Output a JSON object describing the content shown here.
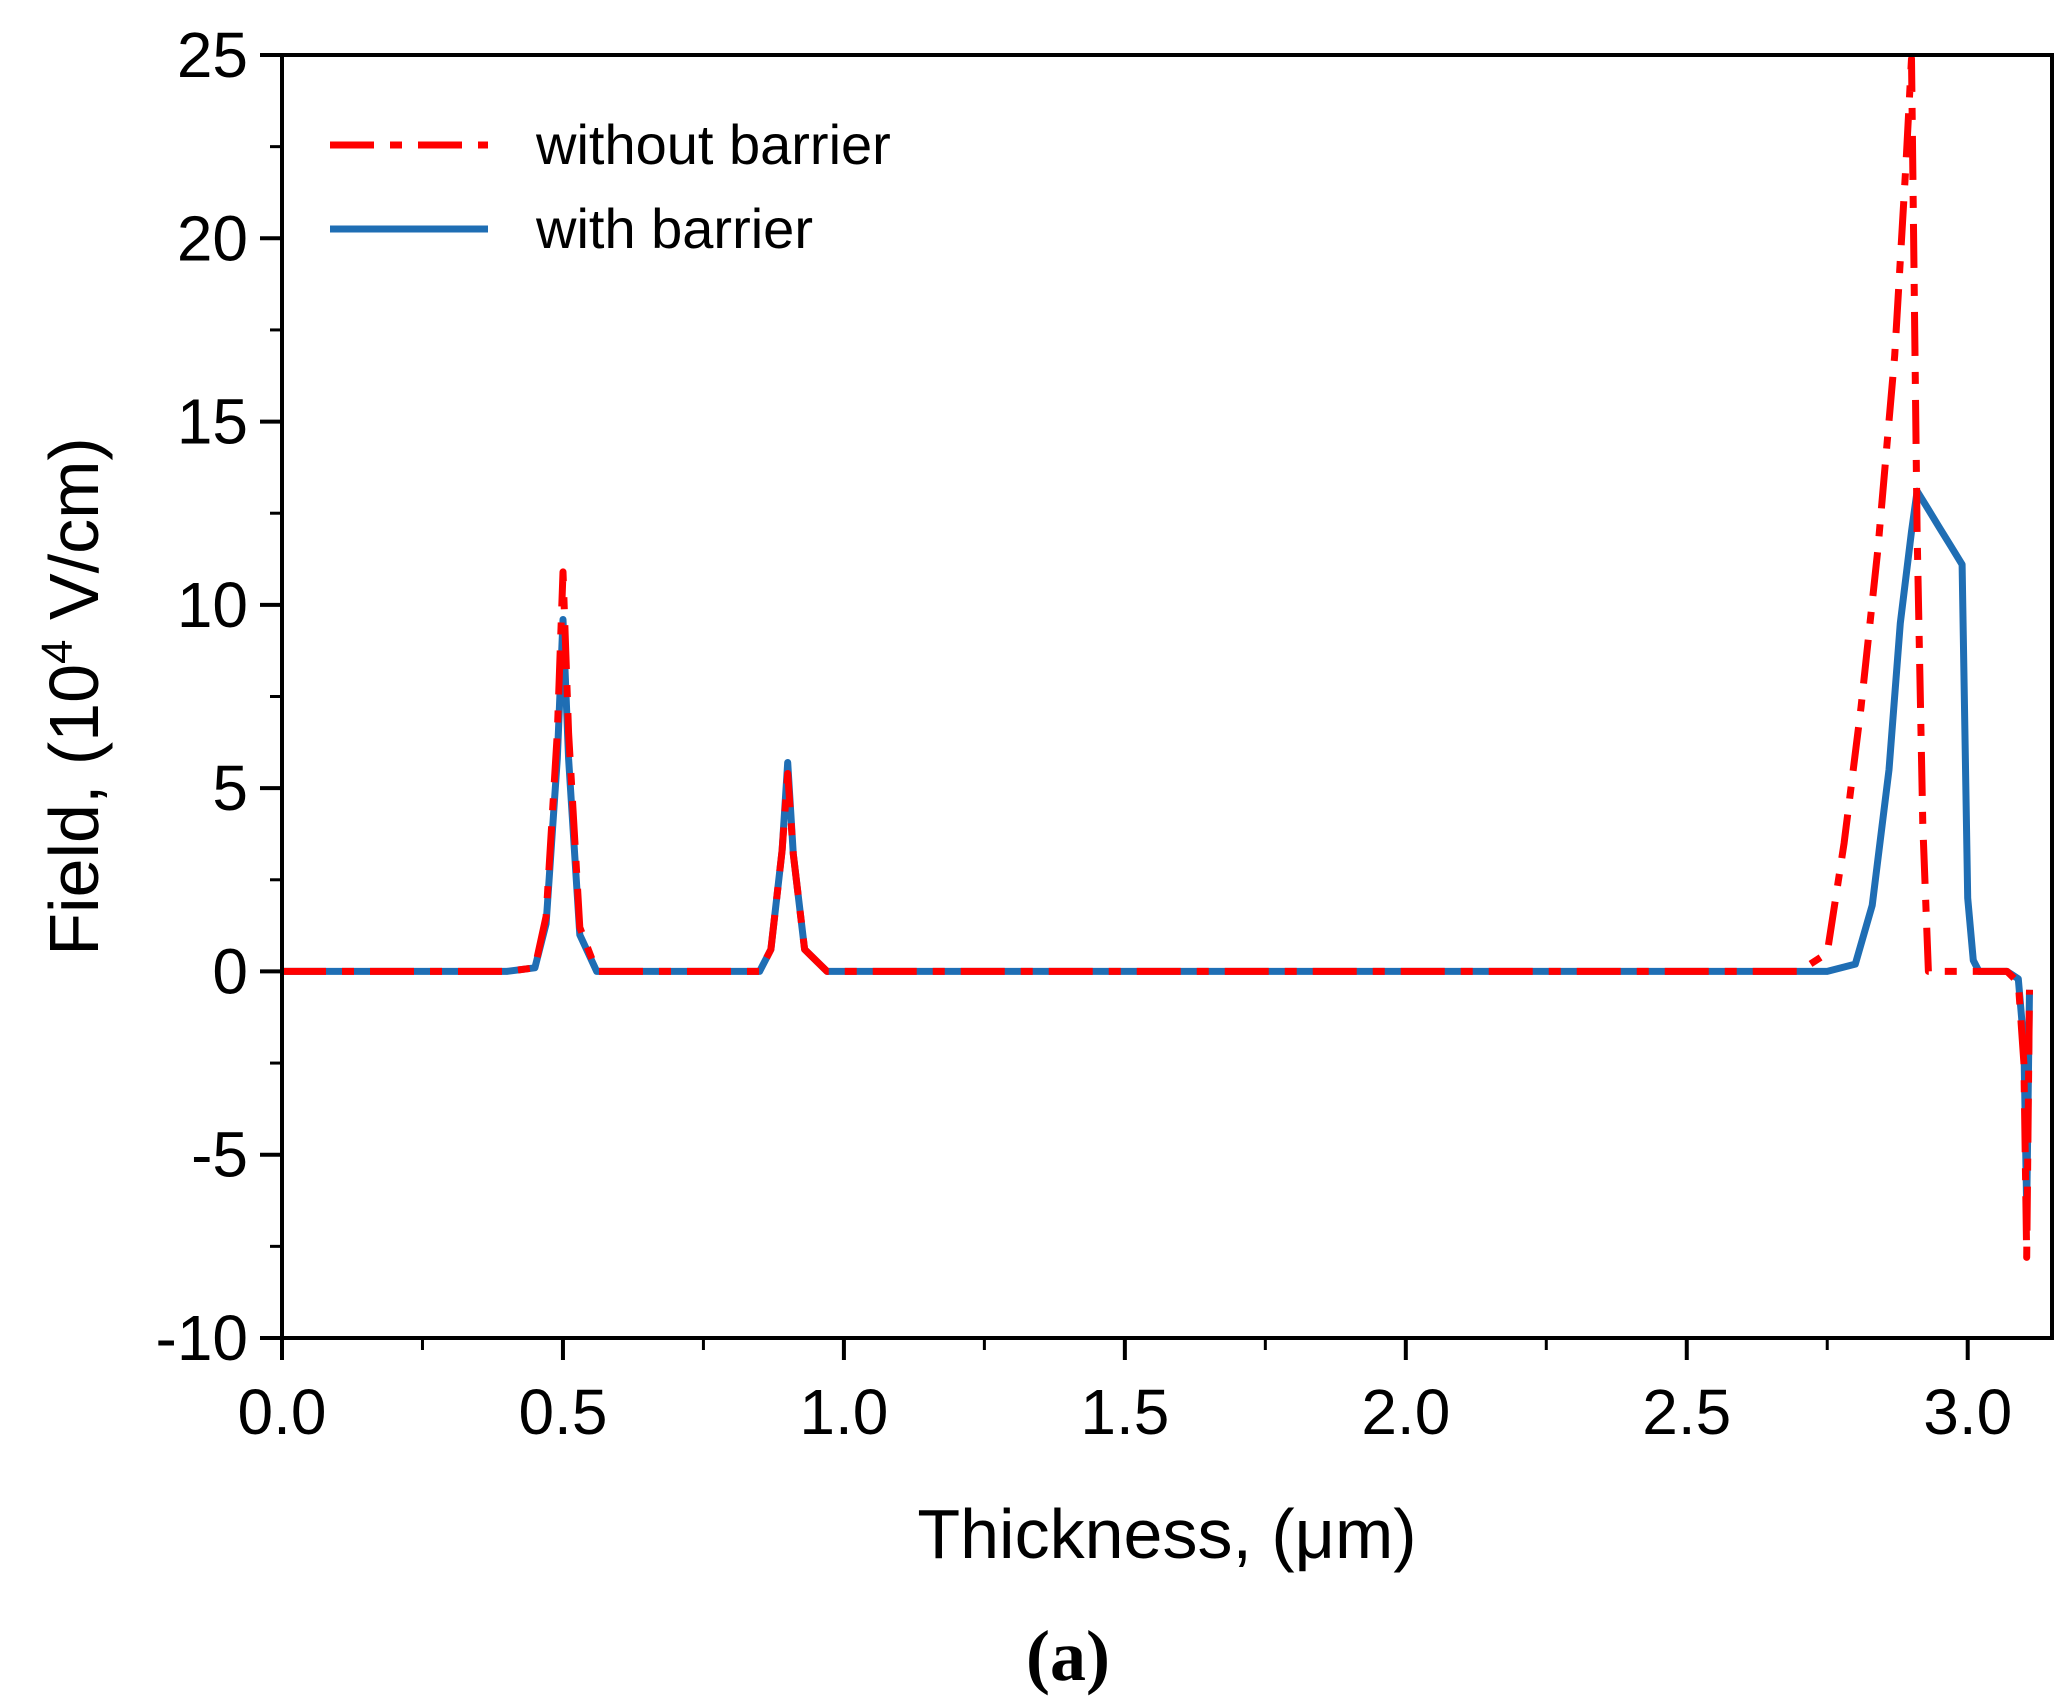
{
  "chart_data": {
    "type": "line",
    "title": "",
    "caption": "(a)",
    "xlabel": "Thickness, (μm)",
    "ylabel_parts": {
      "before": "Field, (10",
      "sup": "4",
      "after": " V/cm)"
    },
    "xlim": [
      0,
      3.15
    ],
    "ylim": [
      -10,
      25
    ],
    "x_ticks": [
      0,
      0.5,
      1.0,
      1.5,
      2.0,
      2.5,
      3.0
    ],
    "x_tick_labels": [
      "0.0",
      "0.5",
      "1.0",
      "1.5",
      "2.0",
      "2.5",
      "3.0"
    ],
    "y_ticks": [
      -10,
      -5,
      0,
      5,
      10,
      15,
      20,
      25
    ],
    "y_tick_labels": [
      "-10",
      "-5",
      "0",
      "5",
      "10",
      "15",
      "20",
      "25"
    ],
    "legend_position": "top-left",
    "series": [
      {
        "name": "without barrier",
        "color": "#ff0000",
        "style": "dash-dot",
        "x": [
          0,
          0.4,
          0.45,
          0.47,
          0.49,
          0.5,
          0.51,
          0.53,
          0.56,
          0.85,
          0.87,
          0.89,
          0.9,
          0.91,
          0.93,
          0.97,
          2.7,
          2.75,
          2.78,
          2.81,
          2.84,
          2.87,
          2.89,
          2.9,
          2.91,
          2.92,
          2.93,
          2.95,
          3.07,
          3.09,
          3.1,
          3.105,
          3.11
        ],
        "y": [
          0,
          0,
          0.1,
          1.5,
          6.5,
          10.9,
          6.5,
          1.2,
          0,
          0,
          0.6,
          3.3,
          5.4,
          3.2,
          0.6,
          0,
          0,
          0.5,
          3.5,
          7.2,
          11.5,
          16.8,
          22.0,
          24.9,
          12.0,
          4.0,
          0,
          0,
          0,
          -0.3,
          -2.5,
          -7.8,
          -0.5
        ]
      },
      {
        "name": "with barrier",
        "color": "#1f6eb4",
        "style": "solid",
        "x": [
          0,
          0.4,
          0.45,
          0.47,
          0.49,
          0.5,
          0.51,
          0.53,
          0.56,
          0.85,
          0.87,
          0.89,
          0.9,
          0.91,
          0.93,
          0.97,
          2.75,
          2.8,
          2.83,
          2.86,
          2.88,
          2.9,
          2.91,
          2.93,
          2.95,
          2.97,
          2.99,
          3.0,
          3.01,
          3.02,
          3.07,
          3.09,
          3.1,
          3.105,
          3.11
        ],
        "y": [
          0,
          0,
          0.1,
          1.3,
          5.8,
          9.6,
          5.8,
          1.0,
          0,
          0,
          0.6,
          3.3,
          5.7,
          3.2,
          0.6,
          0,
          0,
          0.2,
          1.8,
          5.5,
          9.5,
          12.0,
          13.1,
          12.6,
          12.1,
          11.6,
          11.1,
          2.0,
          0.3,
          0,
          0,
          -0.2,
          -2.0,
          -6.5,
          -0.5
        ]
      }
    ]
  }
}
